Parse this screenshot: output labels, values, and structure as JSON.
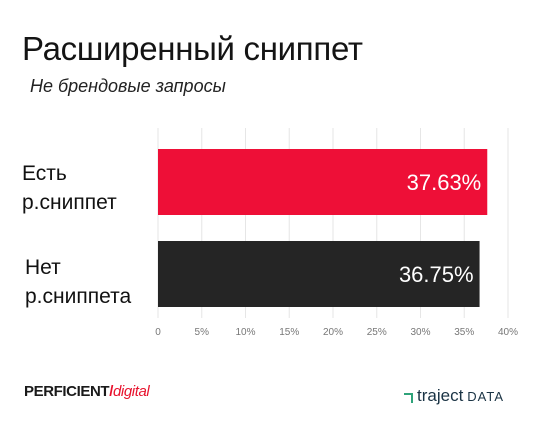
{
  "title": "Расширенный сниппет",
  "subtitle": "Не брендовые запросы",
  "chart_data": {
    "type": "bar",
    "orientation": "horizontal",
    "categories": [
      "Есть\nр.сниппет",
      "Нет\nр.сниппета"
    ],
    "category_lines": [
      [
        "Есть",
        "р.сниппет"
      ],
      [
        "Нет",
        "р.сниппета"
      ]
    ],
    "values": [
      37.63,
      36.75
    ],
    "data_labels": [
      "37.63%",
      "36.75%"
    ],
    "xlim": [
      0,
      40
    ],
    "x_ticks": [
      0,
      5,
      10,
      15,
      20,
      25,
      30,
      35,
      40
    ],
    "x_tick_labels": [
      "0",
      "5%",
      "10%",
      "15%",
      "20%",
      "25%",
      "30%",
      "35%",
      "40%"
    ],
    "bar_colors": [
      "#ee0f37",
      "#252525"
    ],
    "grid": true,
    "xlabel": "",
    "ylabel": ""
  },
  "footer": {
    "left_bold": "PERFICIENT",
    "left_slash": "/",
    "left_digital": "digital",
    "right_traject": "traject",
    "right_data": "DATA"
  }
}
